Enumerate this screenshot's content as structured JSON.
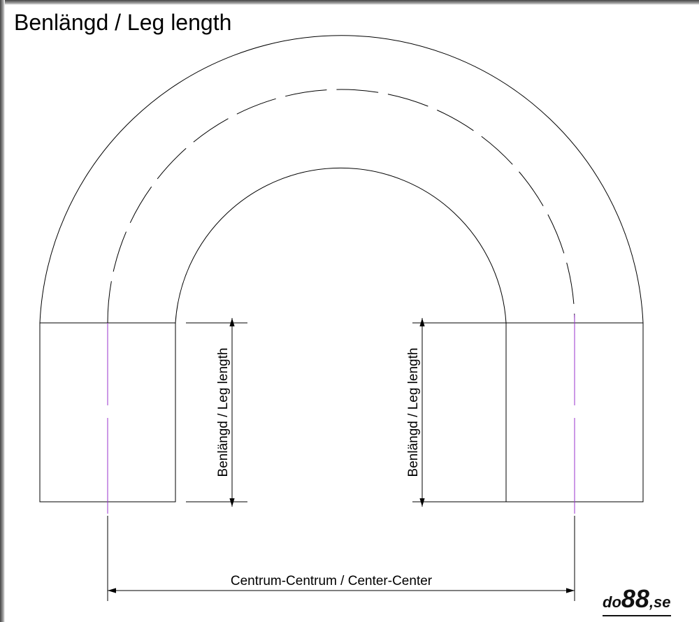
{
  "title": "Benlängd / Leg length",
  "labels": {
    "leg_left": "Benlängd / Leg length",
    "leg_right": "Benlängd / Leg length",
    "center_center": "Centrum-Centrum / Center-Center"
  },
  "logo": {
    "prefix": "do",
    "number": "88",
    "suffix": ",se"
  },
  "colors": {
    "line": "#000000",
    "centerline": "#9933cc"
  }
}
